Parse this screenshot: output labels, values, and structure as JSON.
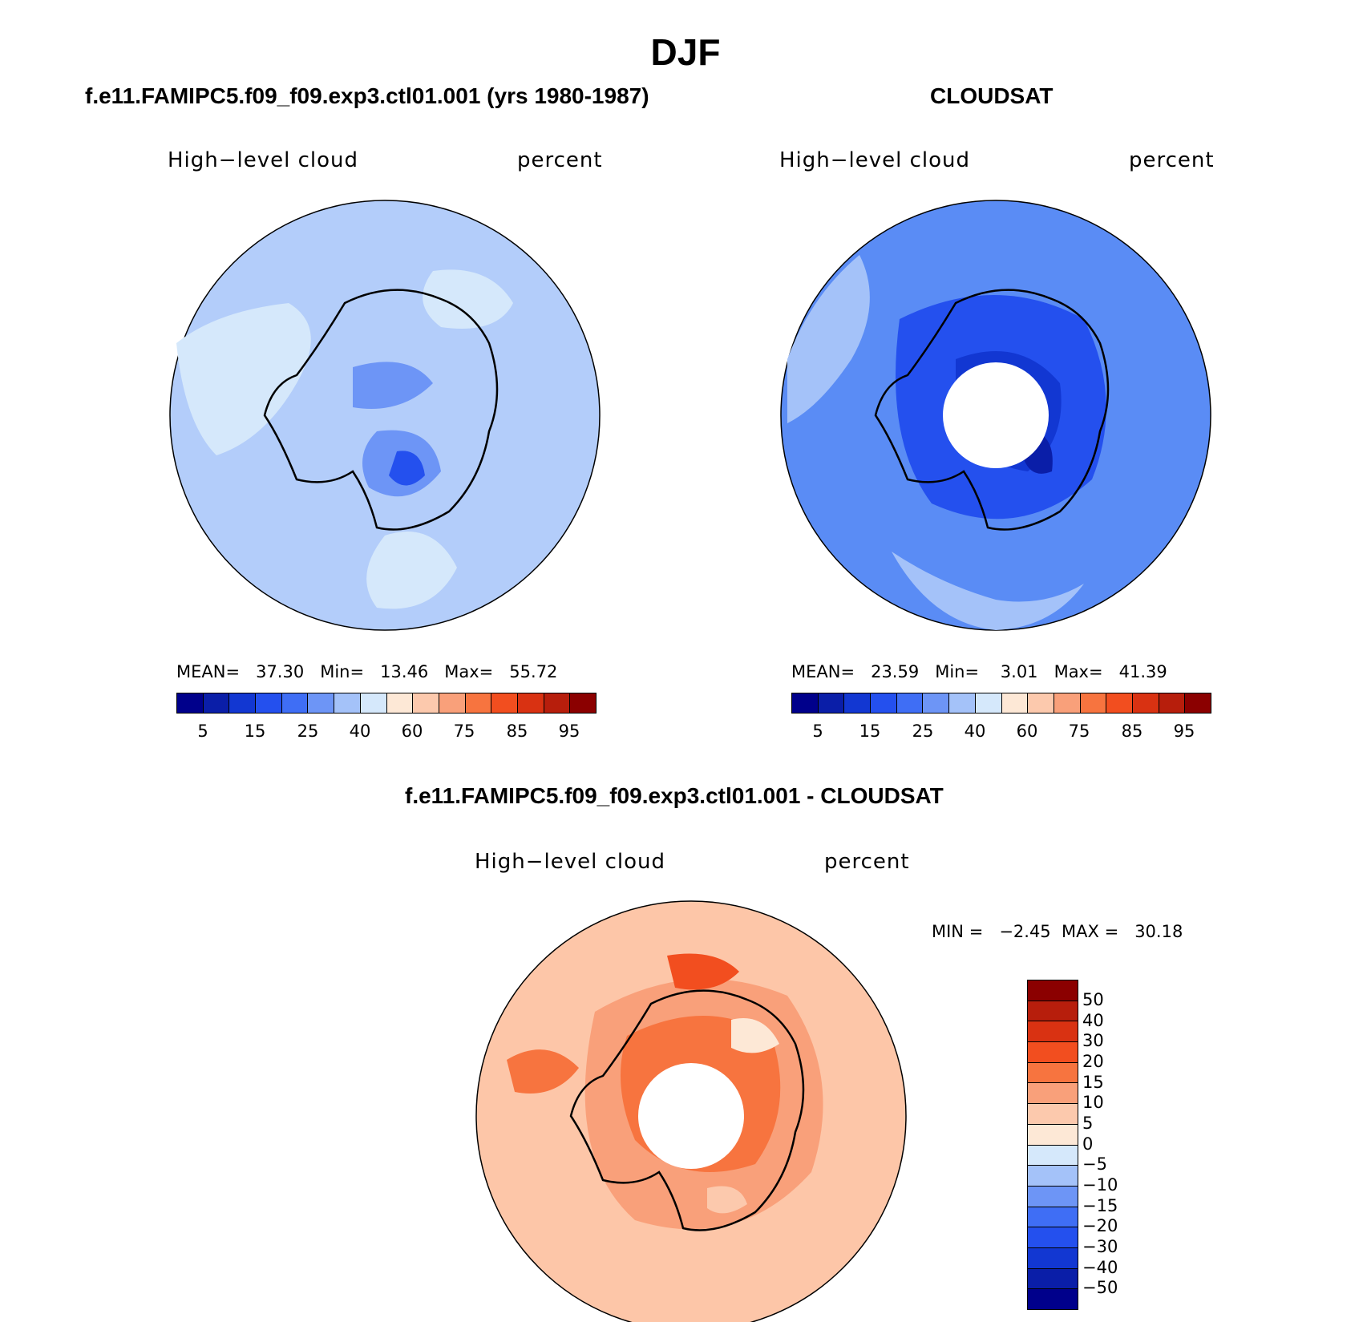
{
  "title": "DJF",
  "panels": [
    {
      "title": "f.e11.FAMIPC5.f09_f09.exp3.ctl01.001 (yrs 1980-1987)",
      "left_label": "High−level cloud",
      "right_label": "percent",
      "stats": "MEAN=   37.30   Min=   13.46   Max=   55.72",
      "background": "#b3cdfa",
      "hole": false
    },
    {
      "title": "CLOUDSAT",
      "left_label": "High−level cloud",
      "right_label": "percent",
      "stats": "MEAN=   23.59   Min=    3.01   Max=   41.39",
      "background": "#5a8cf5",
      "hole": true
    },
    {
      "title": "f.e11.FAMIPC5.f09_f09.exp3.ctl01.001 - CLOUDSAT",
      "left_label": "High−level cloud",
      "right_label": "percent",
      "stats": "MIN =   −2.45  MAX =   30.18",
      "background": "#fdc6a8",
      "hole": true
    }
  ],
  "abs_colorbar": {
    "colors": [
      "#00008b",
      "#0a1ea8",
      "#1237d2",
      "#2450ee",
      "#3f6ef5",
      "#6d95f6",
      "#a4c2f9",
      "#d5e8fb",
      "#fde8d6",
      "#fcc9ad",
      "#f9a07a",
      "#f7743f",
      "#f24e1f",
      "#d93212",
      "#b71e0c",
      "#8b0000"
    ],
    "ticks": [
      "5",
      "15",
      "25",
      "40",
      "60",
      "75",
      "85",
      "95"
    ]
  },
  "diff_colorbar": {
    "colors": [
      "#8b0000",
      "#b71e0c",
      "#d93212",
      "#f24e1f",
      "#f7743f",
      "#f9a07a",
      "#fcc9ad",
      "#fde8d6",
      "#d5e8fb",
      "#a4c2f9",
      "#6d95f6",
      "#3f6ef5",
      "#2450ee",
      "#1237d2",
      "#0a1ea8",
      "#00008b"
    ],
    "ticks": [
      "50",
      "40",
      "30",
      "20",
      "15",
      "10",
      "5",
      "0",
      "−5",
      "−10",
      "−15",
      "−20",
      "−30",
      "−40",
      "−50"
    ]
  }
}
